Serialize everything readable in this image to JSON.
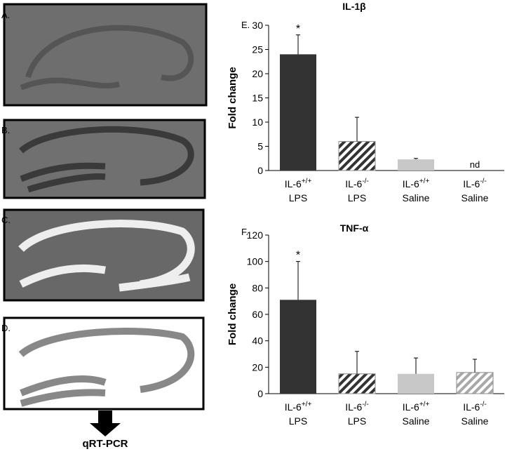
{
  "panels": [
    {
      "label": "A."
    },
    {
      "label": "B."
    },
    {
      "label": "C."
    },
    {
      "label": "D."
    }
  ],
  "arrow_label": "qRT-PCR",
  "chart_data": [
    {
      "type": "bar",
      "panel_label": "E.",
      "title": "IL-1β",
      "y_label": "Fold change",
      "categories": [
        {
          "name": "IL-6",
          "sup": "+/+",
          "group": "LPS"
        },
        {
          "name": "IL-6",
          "sup": "-/-",
          "group": "LPS"
        },
        {
          "name": "IL-6",
          "sup": "+/+",
          "group": "Saline"
        },
        {
          "name": "IL-6",
          "sup": "-/-",
          "group": "Saline"
        }
      ],
      "values": [
        24,
        6,
        2.3,
        null
      ],
      "errors": [
        4,
        5,
        0.2,
        null
      ],
      "markers": [
        "*",
        null,
        null,
        "nd"
      ],
      "colors": [
        "#333333",
        "#333333",
        "#c8c8c8",
        "#a8a8a8"
      ],
      "hatched": [
        false,
        true,
        false,
        true
      ],
      "ylim": [
        0,
        30
      ],
      "yticks": [
        0,
        5,
        10,
        15,
        20,
        25,
        30
      ]
    },
    {
      "type": "bar",
      "panel_label": "F.",
      "title": "TNF-α",
      "y_label": "Fold change",
      "categories": [
        {
          "name": "IL-6",
          "sup": "+/+",
          "group": "LPS"
        },
        {
          "name": "IL-6",
          "sup": "-/-",
          "group": "LPS"
        },
        {
          "name": "IL-6",
          "sup": "+/+",
          "group": "Saline"
        },
        {
          "name": "IL-6",
          "sup": "-/-",
          "group": "Saline"
        }
      ],
      "values": [
        71,
        15,
        15,
        16
      ],
      "errors": [
        29,
        17,
        12,
        10
      ],
      "markers": [
        "*",
        null,
        null,
        null
      ],
      "colors": [
        "#333333",
        "#333333",
        "#c8c8c8",
        "#a8a8a8"
      ],
      "hatched": [
        false,
        true,
        false,
        true
      ],
      "ylim": [
        0,
        120
      ],
      "yticks": [
        0,
        20,
        40,
        60,
        80,
        100,
        120
      ]
    }
  ]
}
